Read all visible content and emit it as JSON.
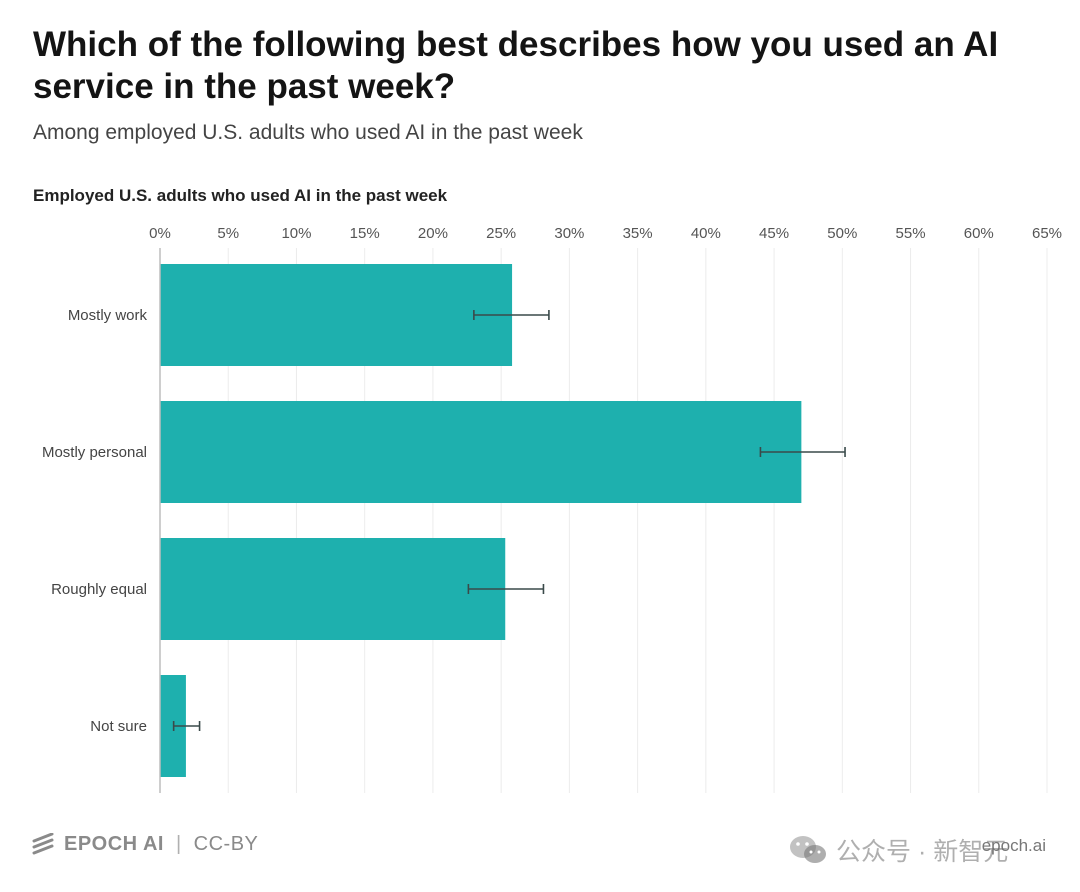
{
  "header": {
    "title": "Which of the following best describes how you used an AI service in the past week?",
    "subtitle": "Among employed U.S. adults who used AI in the past week"
  },
  "panel": {
    "label": "Employed U.S. adults who used AI in the past week"
  },
  "chart_data": {
    "type": "bar",
    "orientation": "horizontal",
    "title": "Employed U.S. adults who used AI in the past week",
    "categories": [
      "Mostly work",
      "Mostly personal",
      "Roughly equal",
      "Not sure"
    ],
    "values": [
      25.8,
      47.0,
      25.3,
      1.9
    ],
    "error_low": [
      23.0,
      44.0,
      22.6,
      1.0
    ],
    "error_high": [
      28.5,
      50.2,
      28.1,
      2.9
    ],
    "xlim": [
      0,
      65
    ],
    "xticks": [
      0,
      5,
      10,
      15,
      20,
      25,
      30,
      35,
      40,
      45,
      50,
      55,
      60,
      65
    ],
    "tick_suffix": "%",
    "axis_position": "top",
    "grid": true,
    "bar_color": "#1eb0ae",
    "error_color": "#3a4a4a"
  },
  "footer": {
    "brand": "EPOCH AI",
    "license": "CC-BY",
    "site": "epoch.ai"
  },
  "watermark": {
    "text": "公众号 · 新智元"
  }
}
